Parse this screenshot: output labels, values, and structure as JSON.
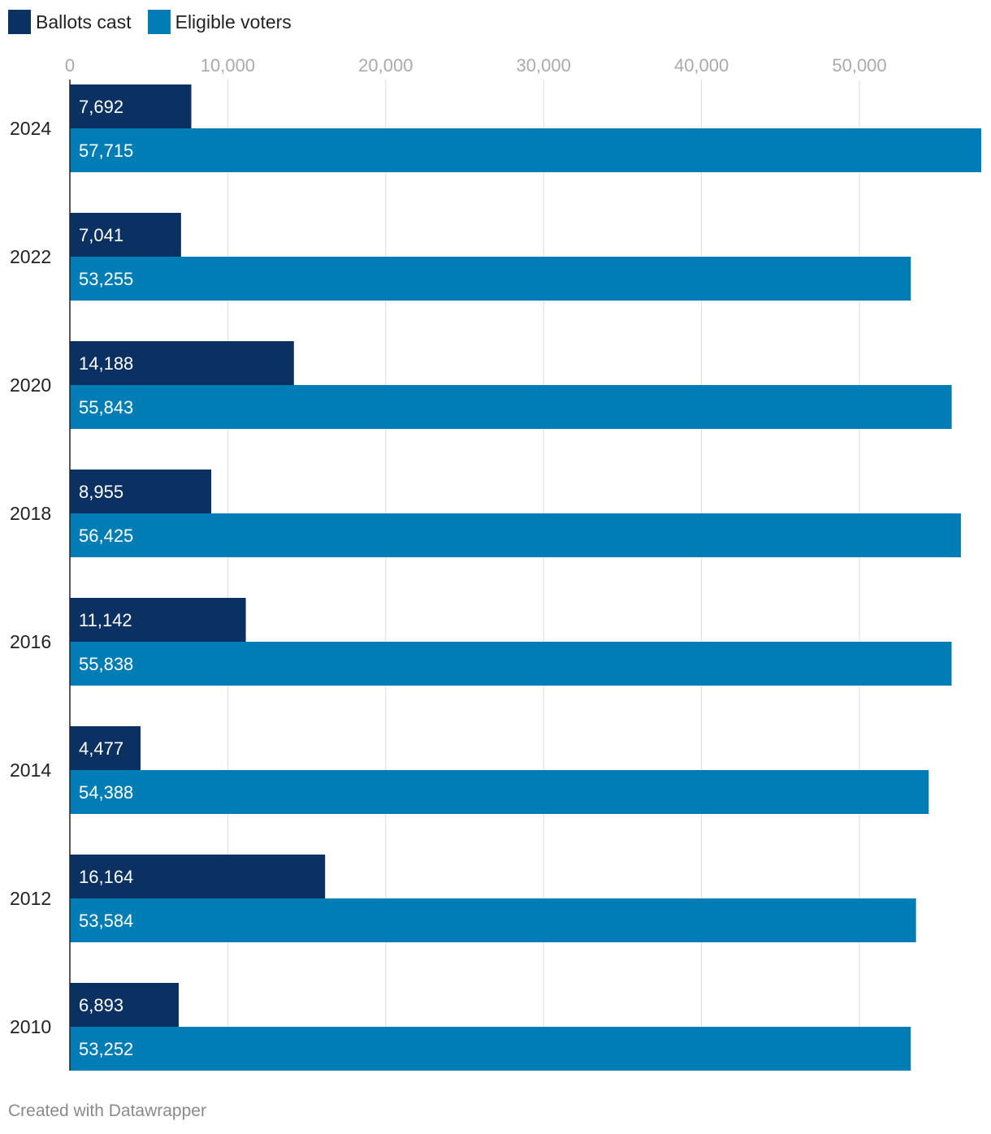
{
  "legend": {
    "items": [
      {
        "label": "Ballots cast",
        "color": "#0a3161"
      },
      {
        "label": "Eligible voters",
        "color": "#007db5"
      }
    ]
  },
  "chart_data": {
    "type": "bar",
    "orientation": "horizontal",
    "categories": [
      "2024",
      "2022",
      "2020",
      "2018",
      "2016",
      "2014",
      "2012",
      "2010"
    ],
    "series": [
      {
        "name": "Ballots cast",
        "color": "#0a3161",
        "values": [
          7692,
          7041,
          14188,
          8955,
          11142,
          4477,
          16164,
          6893
        ]
      },
      {
        "name": "Eligible voters",
        "color": "#007db5",
        "values": [
          57715,
          53255,
          55843,
          56425,
          55838,
          54388,
          53584,
          53252
        ]
      }
    ],
    "value_labels": [
      [
        "7,692",
        "7,041",
        "14,188",
        "8,955",
        "11,142",
        "4,477",
        "16,164",
        "6,893"
      ],
      [
        "57,715",
        "53,255",
        "55,843",
        "56,425",
        "55,838",
        "54,388",
        "53,584",
        "53,252"
      ]
    ],
    "x_ticks": [
      0,
      10000,
      20000,
      30000,
      40000,
      50000
    ],
    "x_tick_labels": [
      "0",
      "10,000",
      "20,000",
      "30,000",
      "40,000",
      "50,000"
    ],
    "xlim": [
      0,
      57715
    ],
    "axis_position": "top",
    "grid": true,
    "legend_position": "top-left"
  },
  "footer": {
    "credit": "Created with Datawrapper"
  }
}
